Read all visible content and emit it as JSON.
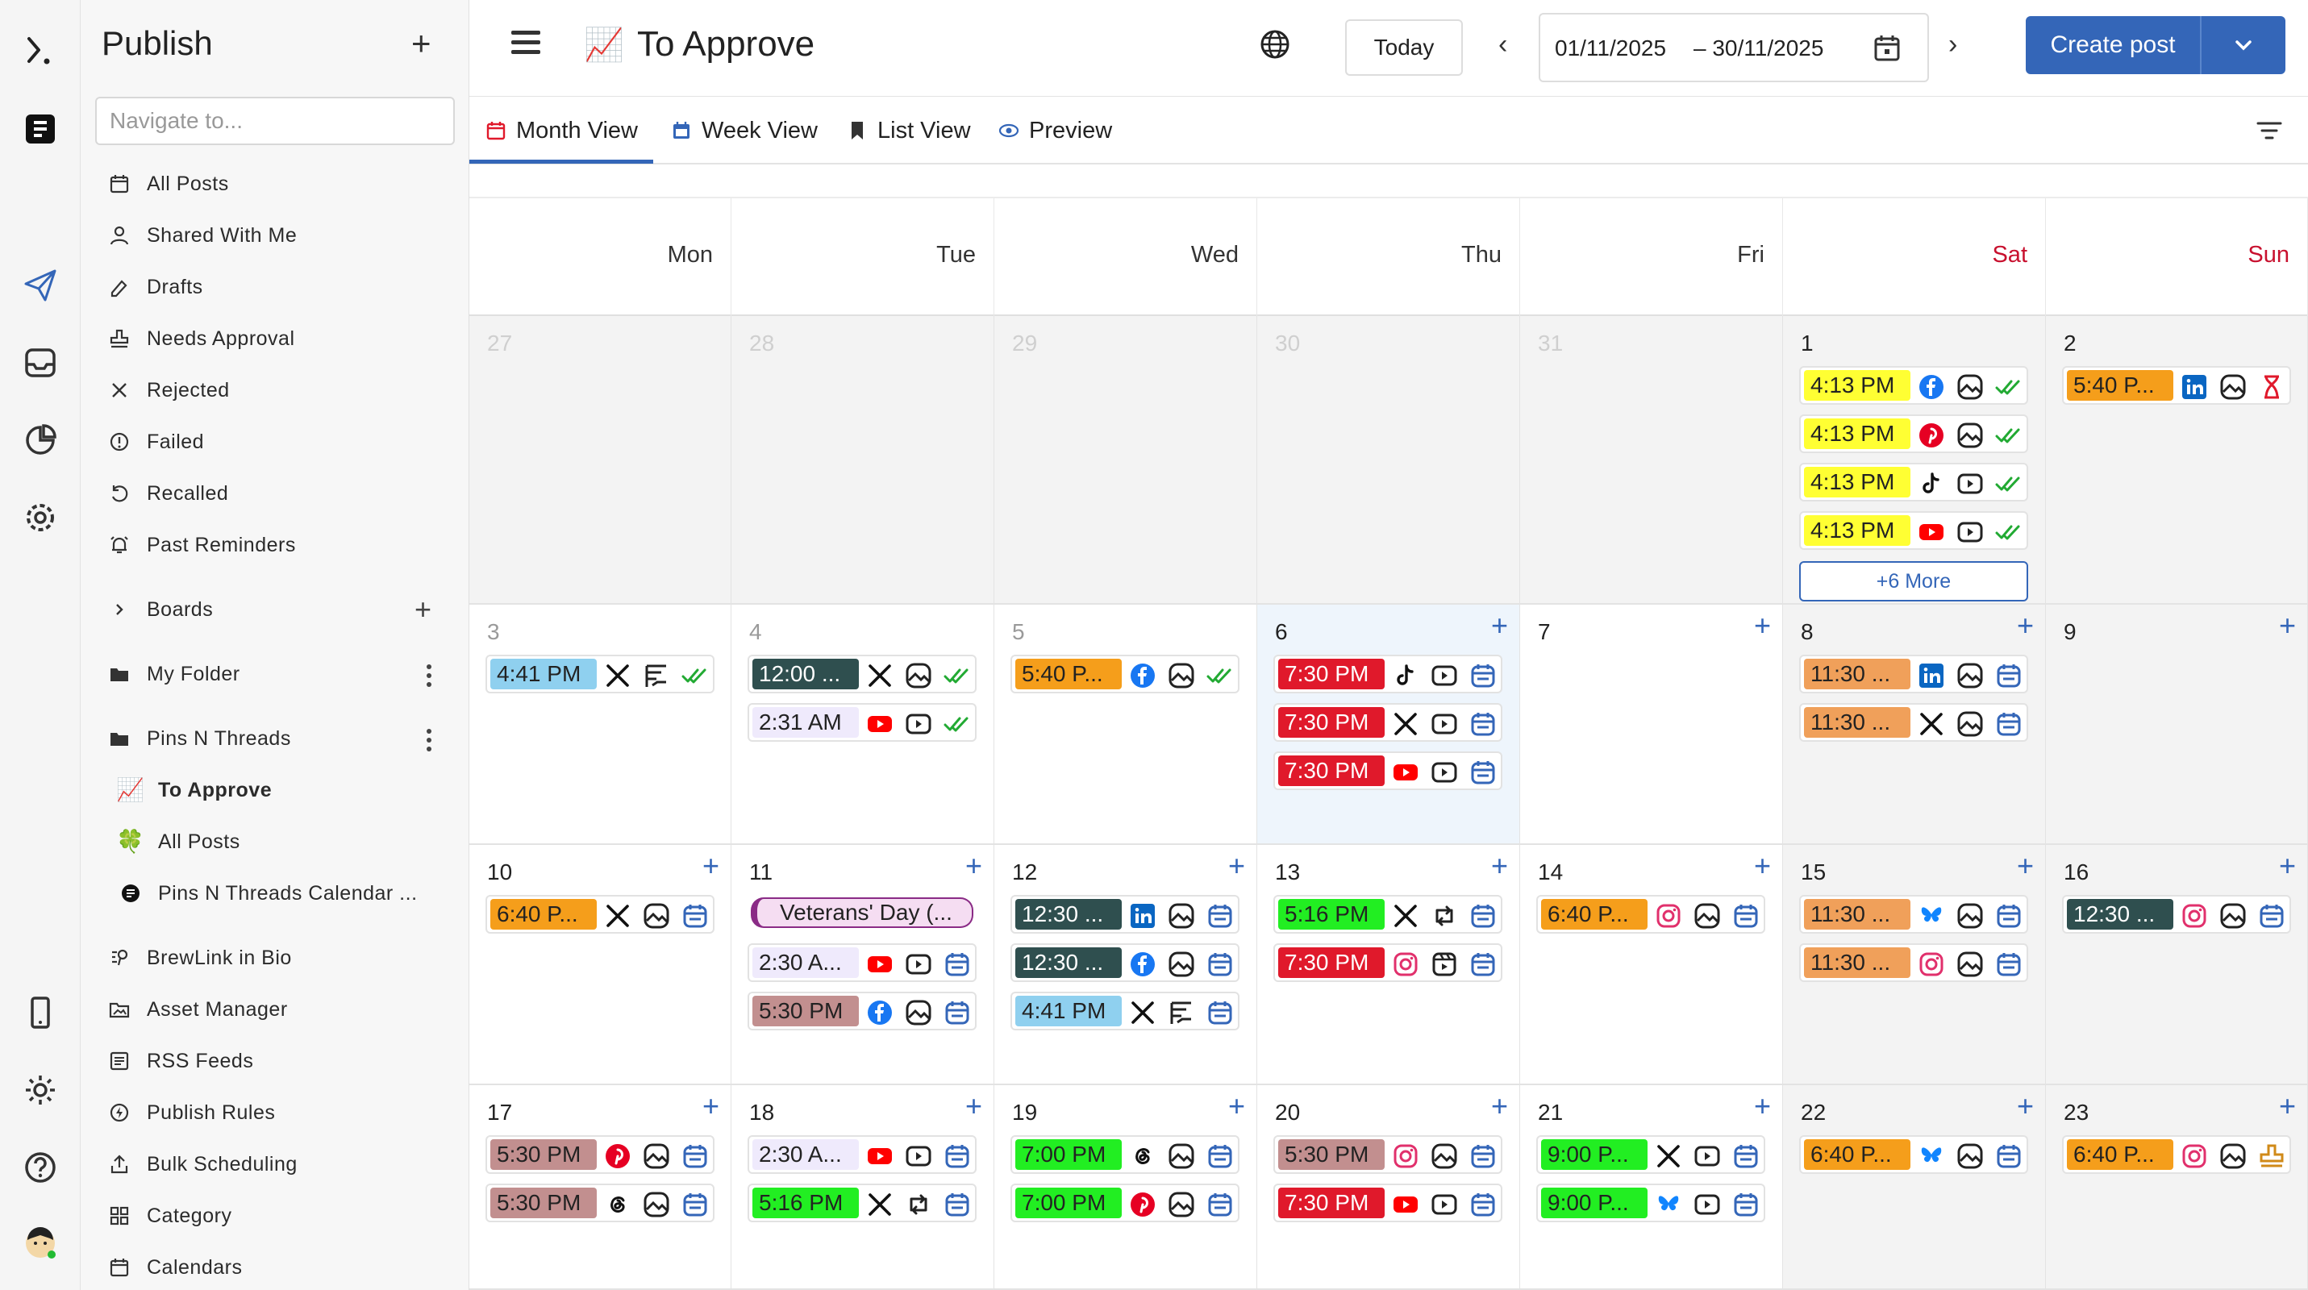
{
  "colors": {
    "accent": "#3466b8",
    "yellow": "#ffff33",
    "orange": "#f59e1b",
    "sky": "#8fd0ef",
    "slate": "#2f4f4f",
    "lavender": "#efeafc",
    "red": "#e0192b",
    "salmon": "#f0a05a",
    "green": "#22ee22",
    "rose": "#c28f8f"
  },
  "sidebar": {
    "title": "Publish",
    "add_label": "+",
    "search_placeholder": "Navigate to...",
    "items": [
      {
        "label": "All Posts",
        "icon": "calendar-icon"
      },
      {
        "label": "Shared With Me",
        "icon": "user-icon"
      },
      {
        "label": "Drafts",
        "icon": "edit-icon"
      },
      {
        "label": "Needs Approval",
        "icon": "stamp-icon"
      },
      {
        "label": "Rejected",
        "icon": "x-icon"
      },
      {
        "label": "Failed",
        "icon": "alert-icon"
      },
      {
        "label": "Recalled",
        "icon": "undo-icon"
      },
      {
        "label": "Past Reminders",
        "icon": "alarm-icon"
      }
    ],
    "boards_label": "Boards",
    "boards_add": "+",
    "folders": [
      {
        "label": "My Folder"
      },
      {
        "label": "Pins N Threads"
      }
    ],
    "sub_items": [
      {
        "label": "To Approve",
        "icon": "📈"
      },
      {
        "label": "All Posts",
        "icon": "🍀"
      },
      {
        "label": "Pins N Threads Calendar ...",
        "icon": "brand-icon"
      }
    ],
    "bottom_items": [
      {
        "label": "BrewLink in Bio",
        "icon": "link-icon"
      },
      {
        "label": "Asset Manager",
        "icon": "folder-image-icon"
      },
      {
        "label": "RSS Feeds",
        "icon": "rss-icon"
      },
      {
        "label": "Publish Rules",
        "icon": "bolt-icon"
      },
      {
        "label": "Bulk Scheduling",
        "icon": "upload-icon"
      },
      {
        "label": "Category",
        "icon": "grid-icon"
      },
      {
        "label": "Calendars",
        "icon": "calendar-icon"
      }
    ]
  },
  "header": {
    "page_icon": "📈",
    "title": "To Approve",
    "today": "Today",
    "prev": "‹",
    "next": "›",
    "date_start": "01/11/2025",
    "date_end": "– 30/11/2025",
    "create": "Create post"
  },
  "tabs": [
    {
      "label": "Month View",
      "icon": "calendar-icon",
      "color": "#e0192b"
    },
    {
      "label": "Week View",
      "icon": "calendar-week-icon",
      "color": "#3466b8"
    },
    {
      "label": "List View",
      "icon": "bookmark-icon",
      "color": "#333333"
    },
    {
      "label": "Preview",
      "icon": "eye-icon",
      "color": "#3466b8"
    }
  ],
  "weekdays": [
    "Mon",
    "Tue",
    "Wed",
    "Thu",
    "Fri",
    "Sat",
    "Sun"
  ],
  "weeks": [
    [
      {
        "day": "27",
        "other": true,
        "events": []
      },
      {
        "day": "28",
        "other": true,
        "events": []
      },
      {
        "day": "29",
        "other": true,
        "events": []
      },
      {
        "day": "30",
        "other": true,
        "events": []
      },
      {
        "day": "31",
        "other": true,
        "events": []
      },
      {
        "day": "1",
        "weekend": true,
        "more": "+6 More",
        "events": [
          {
            "time": "4:13 PM",
            "color": "yellow",
            "icons": [
              "facebook-icon",
              "image-icon",
              "check-double-icon"
            ]
          },
          {
            "time": "4:13 PM",
            "color": "yellow",
            "icons": [
              "pinterest-icon",
              "image-icon",
              "check-double-icon"
            ]
          },
          {
            "time": "4:13 PM",
            "color": "yellow",
            "icons": [
              "tiktok-icon",
              "video-icon",
              "check-double-icon"
            ]
          },
          {
            "time": "4:13 PM",
            "color": "yellow",
            "icons": [
              "youtube-icon",
              "video-icon",
              "check-double-icon"
            ]
          }
        ]
      },
      {
        "day": "2",
        "weekend": true,
        "events": [
          {
            "time": "5:40 P...",
            "color": "orange",
            "icons": [
              "linkedin-icon",
              "image-icon",
              "hourglass-icon"
            ]
          }
        ]
      }
    ],
    [
      {
        "day": "3",
        "gray": true,
        "events": [
          {
            "time": "4:41 PM",
            "color": "sky",
            "icons": [
              "x-logo-icon",
              "text-icon",
              "check-double-icon"
            ]
          }
        ]
      },
      {
        "day": "4",
        "gray": true,
        "events": [
          {
            "time": "12:00 ...",
            "color": "slate",
            "icons": [
              "x-logo-icon",
              "image-icon",
              "check-double-icon"
            ]
          },
          {
            "time": "2:31 AM",
            "color": "lavender",
            "icons": [
              "youtube-icon",
              "video-icon",
              "check-double-icon"
            ]
          }
        ]
      },
      {
        "day": "5",
        "gray": true,
        "events": [
          {
            "time": "5:40 P...",
            "color": "orange",
            "icons": [
              "facebook-icon",
              "image-icon",
              "check-double-icon"
            ]
          }
        ]
      },
      {
        "day": "6",
        "today": true,
        "add": "+",
        "events": [
          {
            "time": "7:30 PM",
            "color": "red",
            "icons": [
              "tiktok-icon",
              "video-icon",
              "schedule-icon"
            ]
          },
          {
            "time": "7:30 PM",
            "color": "red",
            "icons": [
              "x-logo-icon",
              "video-icon",
              "schedule-icon"
            ]
          },
          {
            "time": "7:30 PM",
            "color": "red",
            "icons": [
              "youtube-icon",
              "video-icon",
              "schedule-icon"
            ]
          }
        ]
      },
      {
        "day": "7",
        "add": "+",
        "events": []
      },
      {
        "day": "8",
        "weekend": true,
        "add": "+",
        "events": [
          {
            "time": "11:30 ...",
            "color": "salmon",
            "icons": [
              "linkedin-icon",
              "image-icon",
              "schedule-icon"
            ]
          },
          {
            "time": "11:30 ...",
            "color": "salmon",
            "icons": [
              "x-logo-icon",
              "image-icon",
              "schedule-icon"
            ]
          }
        ]
      },
      {
        "day": "9",
        "weekend": true,
        "add": "+",
        "events": []
      }
    ],
    [
      {
        "day": "10",
        "add": "+",
        "events": [
          {
            "time": "6:40 P...",
            "color": "orange",
            "icons": [
              "x-logo-icon",
              "image-icon",
              "schedule-icon"
            ]
          }
        ]
      },
      {
        "day": "11",
        "add": "+",
        "events": [
          {
            "title": "Veterans' Day (..."
          },
          {
            "time": "2:30 A...",
            "color": "lavender",
            "icons": [
              "youtube-icon",
              "video-icon",
              "schedule-icon"
            ]
          },
          {
            "time": "5:30 PM",
            "color": "rose",
            "icons": [
              "facebook-icon",
              "image-icon",
              "schedule-icon"
            ]
          }
        ]
      },
      {
        "day": "12",
        "add": "+",
        "events": [
          {
            "time": "12:30 ...",
            "color": "slate",
            "icons": [
              "linkedin-icon",
              "image-icon",
              "schedule-icon"
            ]
          },
          {
            "time": "12:30 ...",
            "color": "slate",
            "icons": [
              "facebook-icon",
              "image-icon",
              "schedule-icon"
            ]
          },
          {
            "time": "4:41 PM",
            "color": "sky",
            "icons": [
              "x-logo-icon",
              "text-icon",
              "schedule-icon"
            ]
          }
        ]
      },
      {
        "day": "13",
        "add": "+",
        "events": [
          {
            "time": "5:16 PM",
            "color": "green",
            "icons": [
              "x-logo-icon",
              "repost-icon",
              "schedule-icon"
            ]
          },
          {
            "time": "7:30 PM",
            "color": "red",
            "icons": [
              "instagram-icon",
              "reel-icon",
              "schedule-icon"
            ]
          }
        ]
      },
      {
        "day": "14",
        "add": "+",
        "events": [
          {
            "time": "6:40 P...",
            "color": "orange",
            "icons": [
              "instagram-icon",
              "image-icon",
              "schedule-icon"
            ]
          }
        ]
      },
      {
        "day": "15",
        "weekend": true,
        "add": "+",
        "events": [
          {
            "time": "11:30 ...",
            "color": "salmon",
            "icons": [
              "bluesky-icon",
              "image-icon",
              "schedule-icon"
            ]
          },
          {
            "time": "11:30 ...",
            "color": "salmon",
            "icons": [
              "instagram-icon",
              "image-icon",
              "schedule-icon"
            ]
          }
        ]
      },
      {
        "day": "16",
        "weekend": true,
        "add": "+",
        "events": [
          {
            "time": "12:30 ...",
            "color": "slate",
            "icons": [
              "instagram-icon",
              "image-icon",
              "schedule-icon"
            ]
          }
        ]
      }
    ],
    [
      {
        "day": "17",
        "add": "+",
        "events": [
          {
            "time": "5:30 PM",
            "color": "rose",
            "icons": [
              "pinterest-icon",
              "image-icon",
              "schedule-icon"
            ]
          },
          {
            "time": "5:30 PM",
            "color": "rose",
            "icons": [
              "threads-icon",
              "image-icon",
              "schedule-icon"
            ]
          }
        ]
      },
      {
        "day": "18",
        "add": "+",
        "events": [
          {
            "time": "2:30 A...",
            "color": "lavender",
            "icons": [
              "youtube-icon",
              "video-icon",
              "schedule-icon"
            ]
          },
          {
            "time": "5:16 PM",
            "color": "green",
            "icons": [
              "x-logo-icon",
              "repost-icon",
              "schedule-icon"
            ]
          }
        ]
      },
      {
        "day": "19",
        "add": "+",
        "events": [
          {
            "time": "7:00 PM",
            "color": "green",
            "icons": [
              "threads-icon",
              "image-icon",
              "schedule-icon"
            ]
          },
          {
            "time": "7:00 PM",
            "color": "green",
            "icons": [
              "pinterest-icon",
              "image-icon",
              "schedule-icon"
            ]
          }
        ]
      },
      {
        "day": "20",
        "add": "+",
        "events": [
          {
            "time": "5:30 PM",
            "color": "rose",
            "icons": [
              "instagram-icon",
              "image-icon",
              "schedule-icon"
            ]
          },
          {
            "time": "7:30 PM",
            "color": "red",
            "icons": [
              "youtube-icon",
              "video-icon",
              "schedule-icon"
            ]
          }
        ]
      },
      {
        "day": "21",
        "add": "+",
        "events": [
          {
            "time": "9:00 P...",
            "color": "green",
            "icons": [
              "x-logo-icon",
              "video-icon",
              "schedule-icon"
            ]
          },
          {
            "time": "9:00 P...",
            "color": "green",
            "icons": [
              "bluesky-icon",
              "video-icon",
              "schedule-icon"
            ]
          }
        ]
      },
      {
        "day": "22",
        "weekend": true,
        "add": "+",
        "events": [
          {
            "time": "6:40 P...",
            "color": "orange",
            "icons": [
              "bluesky-icon",
              "image-icon",
              "schedule-icon"
            ]
          }
        ]
      },
      {
        "day": "23",
        "weekend": true,
        "add": "+",
        "events": [
          {
            "time": "6:40 P...",
            "color": "orange",
            "icons": [
              "instagram-icon",
              "image-icon",
              "stamp-icon"
            ]
          }
        ]
      }
    ]
  ]
}
